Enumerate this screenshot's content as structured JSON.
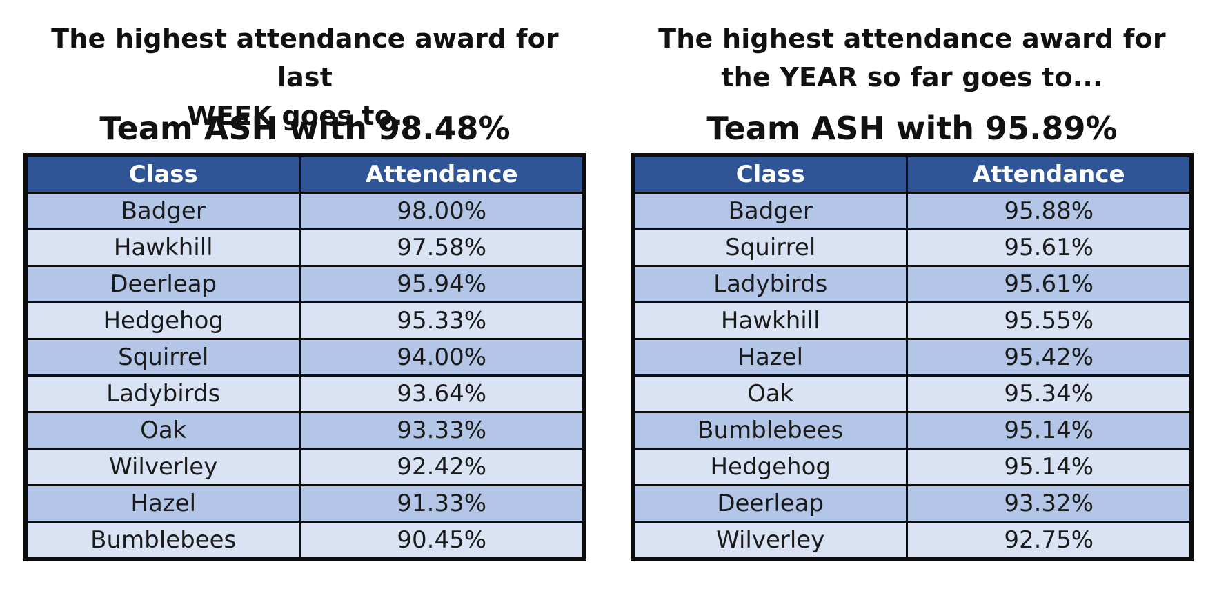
{
  "week": {
    "heading_line1": "The highest attendance award for last",
    "heading_line2": "WEEK goes to...",
    "team": "Team ASH with 98.48%",
    "col_class": "Class",
    "col_attendance": "Attendance",
    "rows": [
      {
        "class": "Badger",
        "attendance": "98.00%"
      },
      {
        "class": "Hawkhill",
        "attendance": "97.58%"
      },
      {
        "class": "Deerleap",
        "attendance": "95.94%"
      },
      {
        "class": "Hedgehog",
        "attendance": "95.33%"
      },
      {
        "class": "Squirrel",
        "attendance": "94.00%"
      },
      {
        "class": "Ladybirds",
        "attendance": "93.64%"
      },
      {
        "class": "Oak",
        "attendance": "93.33%"
      },
      {
        "class": "Wilverley",
        "attendance": "92.42%"
      },
      {
        "class": "Hazel",
        "attendance": "91.33%"
      },
      {
        "class": "Bumblebees",
        "attendance": "90.45%"
      }
    ]
  },
  "year": {
    "heading_line1": "The highest attendance award for",
    "heading_line2": "the YEAR so far goes to...",
    "team": "Team ASH with 95.89%",
    "col_class": "Class",
    "col_attendance": "Attendance",
    "rows": [
      {
        "class": "Badger",
        "attendance": "95.88%"
      },
      {
        "class": "Squirrel",
        "attendance": "95.61%"
      },
      {
        "class": "Ladybirds",
        "attendance": "95.61%"
      },
      {
        "class": "Hawkhill",
        "attendance": "95.55%"
      },
      {
        "class": "Hazel",
        "attendance": "95.42%"
      },
      {
        "class": "Oak",
        "attendance": "95.34%"
      },
      {
        "class": "Bumblebees",
        "attendance": "95.14%"
      },
      {
        "class": "Hedgehog",
        "attendance": "95.14%"
      },
      {
        "class": "Deerleap",
        "attendance": "93.32%"
      },
      {
        "class": "Wilverley",
        "attendance": "92.75%"
      }
    ]
  },
  "colors": {
    "header_bg": "#2f5597",
    "row_dark": "#b4c6e7",
    "row_light": "#dae3f3",
    "border": "#0d0d0d"
  }
}
